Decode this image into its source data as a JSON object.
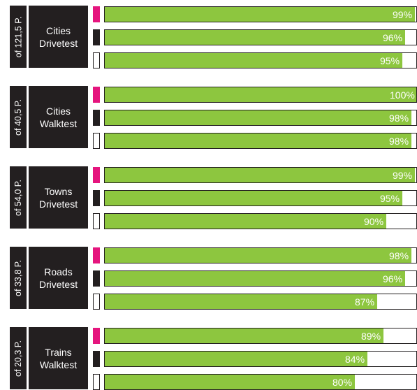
{
  "colors": {
    "bar_fill": "#8dc63f",
    "box_dark": "#231f20",
    "legend": [
      "#e5157e",
      "#231f20",
      "#ffffff"
    ]
  },
  "chart_data": {
    "type": "bar",
    "orientation": "horizontal",
    "xlim": [
      0,
      100
    ],
    "value_unit": "%",
    "series": [
      {
        "legend_color": "#e5157e"
      },
      {
        "legend_color": "#231f20"
      },
      {
        "legend_color": "#ffffff"
      }
    ],
    "groups": [
      {
        "label": "Cities\nDrivetest",
        "side_label": "of 121,5 P.",
        "values": [
          99,
          96,
          95
        ],
        "value_labels": [
          "99%",
          "96%",
          "95%"
        ]
      },
      {
        "label": "Cities\nWalktest",
        "side_label": "of 40,5 P.",
        "values": [
          100,
          98,
          98
        ],
        "value_labels": [
          "100%",
          "98%",
          "98%"
        ]
      },
      {
        "label": "Towns\nDrivetest",
        "side_label": "of 54,0 P.",
        "values": [
          99,
          95,
          90
        ],
        "value_labels": [
          "99%",
          "95%",
          "90%"
        ]
      },
      {
        "label": "Roads\nDrivetest",
        "side_label": "of 33,8 P.",
        "values": [
          98,
          96,
          87
        ],
        "value_labels": [
          "98%",
          "96%",
          "87%"
        ]
      },
      {
        "label": "Trains\nWalktest",
        "side_label": "of 20,3 P.",
        "values": [
          89,
          84,
          80
        ],
        "value_labels": [
          "89%",
          "84%",
          "80%"
        ]
      }
    ]
  }
}
